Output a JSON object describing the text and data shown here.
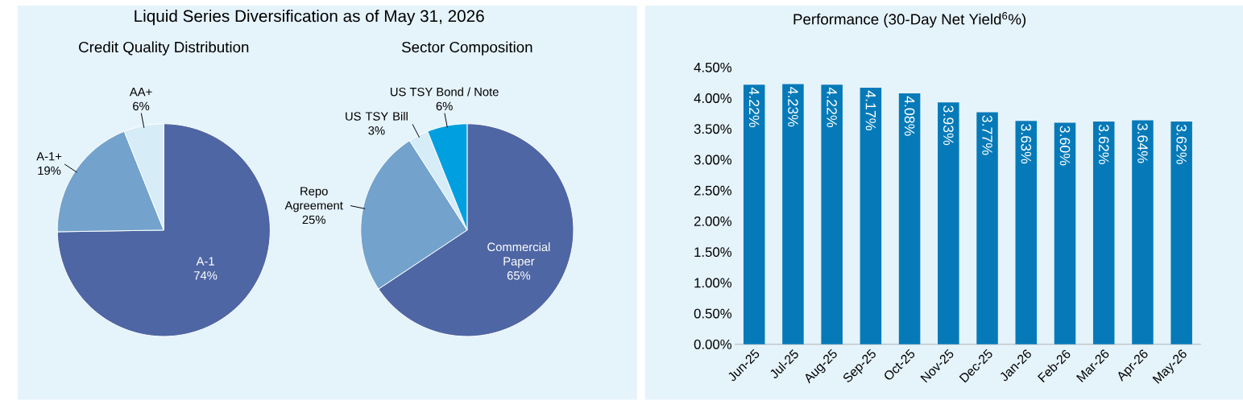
{
  "chart_data": [
    {
      "type": "pie",
      "title": "Liquid Series Diversification as of May 31, 2026",
      "subtitle": "Credit Quality Distribution",
      "categories": [
        "A-1",
        "A-1+",
        "AA+"
      ],
      "values": [
        74,
        19,
        6
      ],
      "value_labels": [
        "74%",
        "19%",
        "6%"
      ],
      "colors": [
        "#4e66a3",
        "#73a3cc",
        "#d6ecf7"
      ]
    },
    {
      "type": "pie",
      "title": "Sector Composition",
      "categories": [
        "Commercial Paper",
        "Repo Agreement",
        "US TSY Bill",
        "US TSY Bond / Note"
      ],
      "values": [
        65,
        25,
        3,
        6
      ],
      "value_labels": [
        "65%",
        "25%",
        "3%",
        "6%"
      ],
      "colors": [
        "#4e66a3",
        "#73a3cc",
        "#d6ecf7",
        "#00a0e0"
      ]
    },
    {
      "type": "bar",
      "title": "Performance (30-Day Net Yield$^{6}$%)",
      "categories": [
        "Jun-25",
        "Jul-25",
        "Aug-25",
        "Sep-25",
        "Oct-25",
        "Nov-25",
        "Dec-25",
        "Jan-26",
        "Feb-26",
        "Mar-26",
        "Apr-26",
        "May-26"
      ],
      "values": [
        4.22,
        4.23,
        4.22,
        4.17,
        4.08,
        3.93,
        3.77,
        3.63,
        3.6,
        3.62,
        3.64,
        3.62
      ],
      "value_labels": [
        "4.22%",
        "4.23%",
        "4.22%",
        "4.17%",
        "4.08%",
        "3.93%",
        "3.77%",
        "3.63%",
        "3.60%",
        "3.62%",
        "3.64%",
        "3.62%"
      ],
      "color": "#067ab8",
      "ylim": [
        0,
        4.5
      ],
      "yticks": [
        {
          "value": 0,
          "label": "0.00%"
        },
        {
          "value": 0.5,
          "label": "0.50%"
        },
        {
          "value": 1,
          "label": "1.00%"
        },
        {
          "value": 1.5,
          "label": "1.50%"
        },
        {
          "value": 2,
          "label": "2.00%"
        },
        {
          "value": 2.5,
          "label": "2.50%"
        },
        {
          "value": 3,
          "label": "3.00%"
        },
        {
          "value": 3.5,
          "label": "3.50%"
        },
        {
          "value": 4,
          "label": "4.00%"
        },
        {
          "value": 4.5,
          "label": "4.50%"
        }
      ]
    }
  ]
}
